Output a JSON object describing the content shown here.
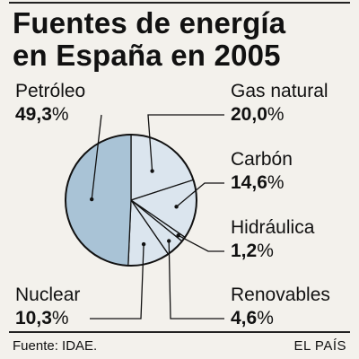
{
  "chart_data": {
    "type": "pie",
    "title": "Fuentes de energía en España en 2005",
    "slices": [
      {
        "name": "Gas natural",
        "value": 20.0,
        "display": "20,0",
        "color": "#dbe5ee"
      },
      {
        "name": "Carbón",
        "value": 14.6,
        "display": "14,6",
        "color": "#dbe5ee"
      },
      {
        "name": "Hidráulica",
        "value": 1.2,
        "display": "1,2",
        "color": "#dbe5ee"
      },
      {
        "name": "Renovables",
        "value": 4.6,
        "display": "4,6",
        "color": "#dbe5ee"
      },
      {
        "name": "Nuclear",
        "value": 10.3,
        "display": "10,3",
        "color": "#dbe5ee"
      },
      {
        "name": "Petróleo",
        "value": 49.3,
        "display": "49,3",
        "color": "#a9c3d6"
      }
    ],
    "unit": "%"
  },
  "title_line1": "Fuentes de energía",
  "title_line2": "en España en 2005",
  "footer": {
    "source": "Fuente: IDAE.",
    "brand": "EL PAÍS"
  }
}
